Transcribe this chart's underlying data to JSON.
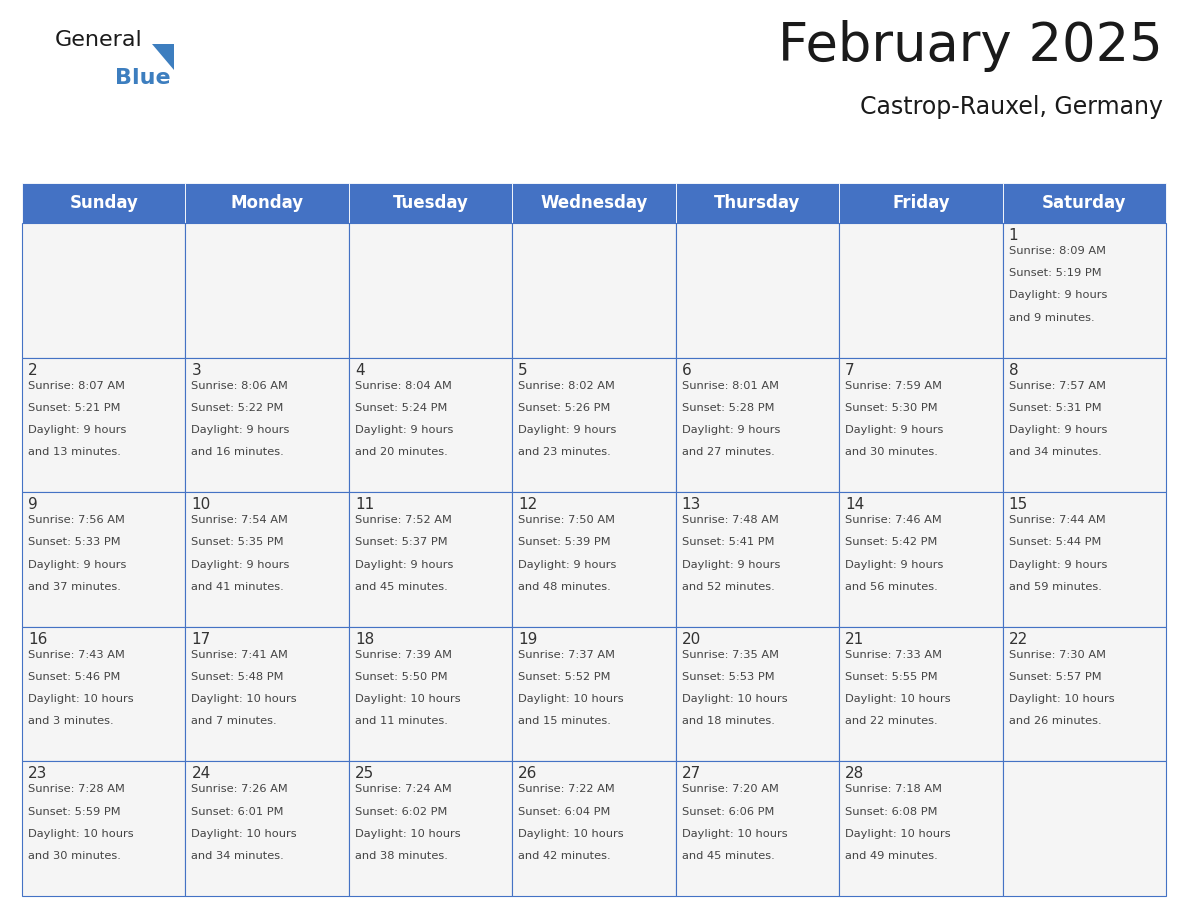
{
  "title": "February 2025",
  "subtitle": "Castrop-Rauxel, Germany",
  "days_of_week": [
    "Sunday",
    "Monday",
    "Tuesday",
    "Wednesday",
    "Thursday",
    "Friday",
    "Saturday"
  ],
  "header_bg": "#4472C4",
  "header_text": "#FFFFFF",
  "cell_bg": "#FFFFFF",
  "border_color": "#4472C4",
  "text_color": "#444444",
  "day_number_color": "#333333",
  "title_color": "#1a1a1a",
  "subtitle_color": "#1a1a1a",
  "logo_general_color": "#1a1a1a",
  "logo_blue_color": "#3d7ebf",
  "calendar_data": [
    [
      null,
      null,
      null,
      null,
      null,
      null,
      {
        "day": 1,
        "sunrise": "8:09 AM",
        "sunset": "5:19 PM",
        "daylight_hours": 9,
        "daylight_minutes": 9
      }
    ],
    [
      {
        "day": 2,
        "sunrise": "8:07 AM",
        "sunset": "5:21 PM",
        "daylight_hours": 9,
        "daylight_minutes": 13
      },
      {
        "day": 3,
        "sunrise": "8:06 AM",
        "sunset": "5:22 PM",
        "daylight_hours": 9,
        "daylight_minutes": 16
      },
      {
        "day": 4,
        "sunrise": "8:04 AM",
        "sunset": "5:24 PM",
        "daylight_hours": 9,
        "daylight_minutes": 20
      },
      {
        "day": 5,
        "sunrise": "8:02 AM",
        "sunset": "5:26 PM",
        "daylight_hours": 9,
        "daylight_minutes": 23
      },
      {
        "day": 6,
        "sunrise": "8:01 AM",
        "sunset": "5:28 PM",
        "daylight_hours": 9,
        "daylight_minutes": 27
      },
      {
        "day": 7,
        "sunrise": "7:59 AM",
        "sunset": "5:30 PM",
        "daylight_hours": 9,
        "daylight_minutes": 30
      },
      {
        "day": 8,
        "sunrise": "7:57 AM",
        "sunset": "5:31 PM",
        "daylight_hours": 9,
        "daylight_minutes": 34
      }
    ],
    [
      {
        "day": 9,
        "sunrise": "7:56 AM",
        "sunset": "5:33 PM",
        "daylight_hours": 9,
        "daylight_minutes": 37
      },
      {
        "day": 10,
        "sunrise": "7:54 AM",
        "sunset": "5:35 PM",
        "daylight_hours": 9,
        "daylight_minutes": 41
      },
      {
        "day": 11,
        "sunrise": "7:52 AM",
        "sunset": "5:37 PM",
        "daylight_hours": 9,
        "daylight_minutes": 45
      },
      {
        "day": 12,
        "sunrise": "7:50 AM",
        "sunset": "5:39 PM",
        "daylight_hours": 9,
        "daylight_minutes": 48
      },
      {
        "day": 13,
        "sunrise": "7:48 AM",
        "sunset": "5:41 PM",
        "daylight_hours": 9,
        "daylight_minutes": 52
      },
      {
        "day": 14,
        "sunrise": "7:46 AM",
        "sunset": "5:42 PM",
        "daylight_hours": 9,
        "daylight_minutes": 56
      },
      {
        "day": 15,
        "sunrise": "7:44 AM",
        "sunset": "5:44 PM",
        "daylight_hours": 9,
        "daylight_minutes": 59
      }
    ],
    [
      {
        "day": 16,
        "sunrise": "7:43 AM",
        "sunset": "5:46 PM",
        "daylight_hours": 10,
        "daylight_minutes": 3
      },
      {
        "day": 17,
        "sunrise": "7:41 AM",
        "sunset": "5:48 PM",
        "daylight_hours": 10,
        "daylight_minutes": 7
      },
      {
        "day": 18,
        "sunrise": "7:39 AM",
        "sunset": "5:50 PM",
        "daylight_hours": 10,
        "daylight_minutes": 11
      },
      {
        "day": 19,
        "sunrise": "7:37 AM",
        "sunset": "5:52 PM",
        "daylight_hours": 10,
        "daylight_minutes": 15
      },
      {
        "day": 20,
        "sunrise": "7:35 AM",
        "sunset": "5:53 PM",
        "daylight_hours": 10,
        "daylight_minutes": 18
      },
      {
        "day": 21,
        "sunrise": "7:33 AM",
        "sunset": "5:55 PM",
        "daylight_hours": 10,
        "daylight_minutes": 22
      },
      {
        "day": 22,
        "sunrise": "7:30 AM",
        "sunset": "5:57 PM",
        "daylight_hours": 10,
        "daylight_minutes": 26
      }
    ],
    [
      {
        "day": 23,
        "sunrise": "7:28 AM",
        "sunset": "5:59 PM",
        "daylight_hours": 10,
        "daylight_minutes": 30
      },
      {
        "day": 24,
        "sunrise": "7:26 AM",
        "sunset": "6:01 PM",
        "daylight_hours": 10,
        "daylight_minutes": 34
      },
      {
        "day": 25,
        "sunrise": "7:24 AM",
        "sunset": "6:02 PM",
        "daylight_hours": 10,
        "daylight_minutes": 38
      },
      {
        "day": 26,
        "sunrise": "7:22 AM",
        "sunset": "6:04 PM",
        "daylight_hours": 10,
        "daylight_minutes": 42
      },
      {
        "day": 27,
        "sunrise": "7:20 AM",
        "sunset": "6:06 PM",
        "daylight_hours": 10,
        "daylight_minutes": 45
      },
      {
        "day": 28,
        "sunrise": "7:18 AM",
        "sunset": "6:08 PM",
        "daylight_hours": 10,
        "daylight_minutes": 49
      },
      null
    ]
  ],
  "figsize": [
    11.88,
    9.18
  ],
  "dpi": 100
}
